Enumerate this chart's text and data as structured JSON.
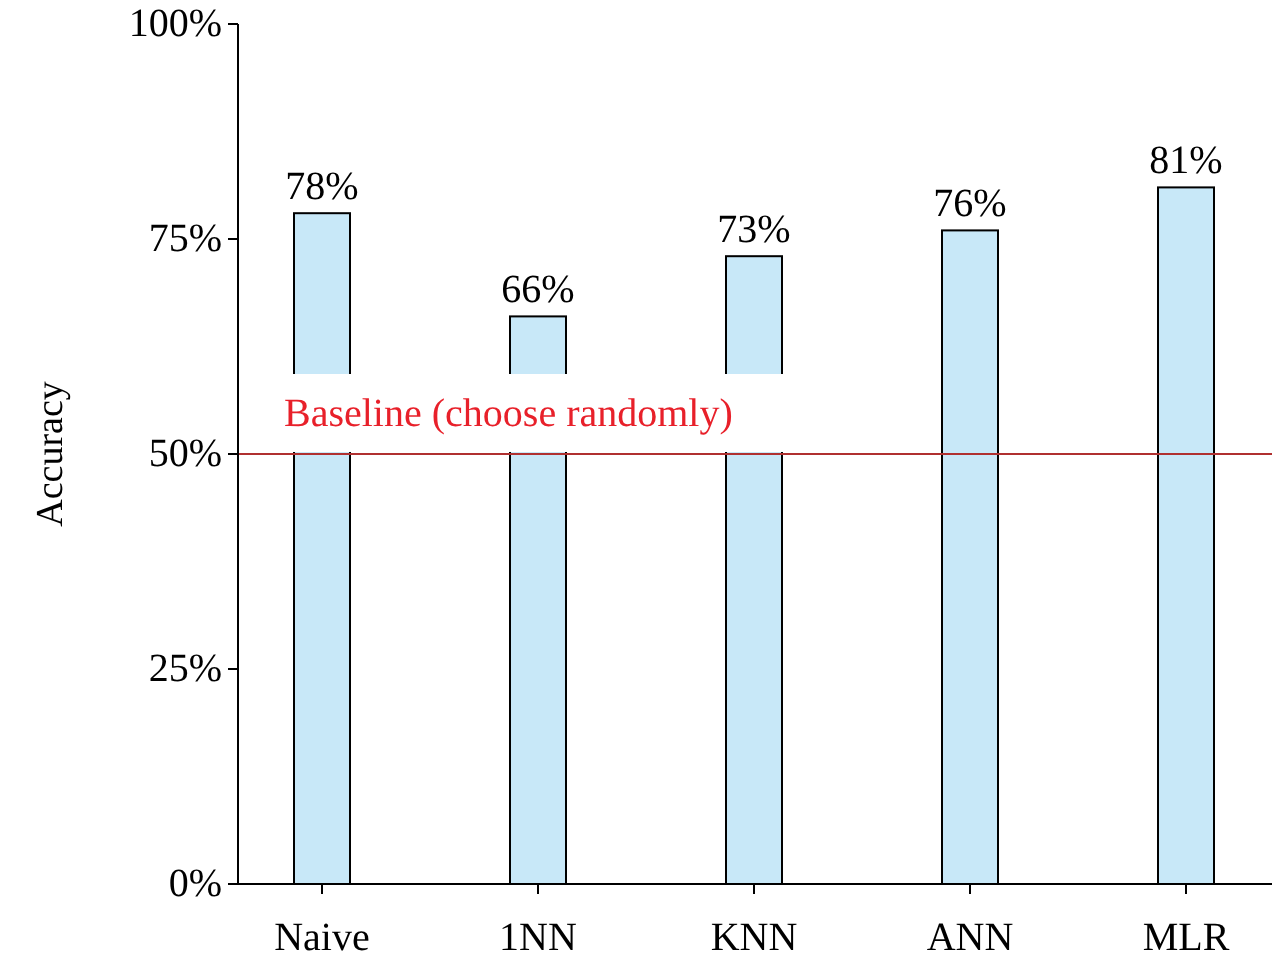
{
  "chart_data": {
    "type": "bar",
    "ylabel": "Accuracy",
    "categories": [
      "Naive",
      "1NN",
      "KNN",
      "ANN",
      "MLR"
    ],
    "values": [
      78,
      66,
      73,
      76,
      81
    ],
    "color": "#c8e8f8",
    "value_labels": [
      "78%",
      "66%",
      "73%",
      "76%",
      "81%"
    ],
    "ylim": [
      0,
      100
    ],
    "yticks": [
      {
        "value": 0,
        "label": "0%"
      },
      {
        "value": 25,
        "label": "25%"
      },
      {
        "value": 50,
        "label": "50%"
      },
      {
        "value": 75,
        "label": "75%"
      },
      {
        "value": 100,
        "label": "100%"
      }
    ],
    "grid": false,
    "ref_lines": [
      {
        "axis": "y",
        "value": 50,
        "label": "Baseline (choose randomly)",
        "color": "#b03030"
      }
    ]
  }
}
